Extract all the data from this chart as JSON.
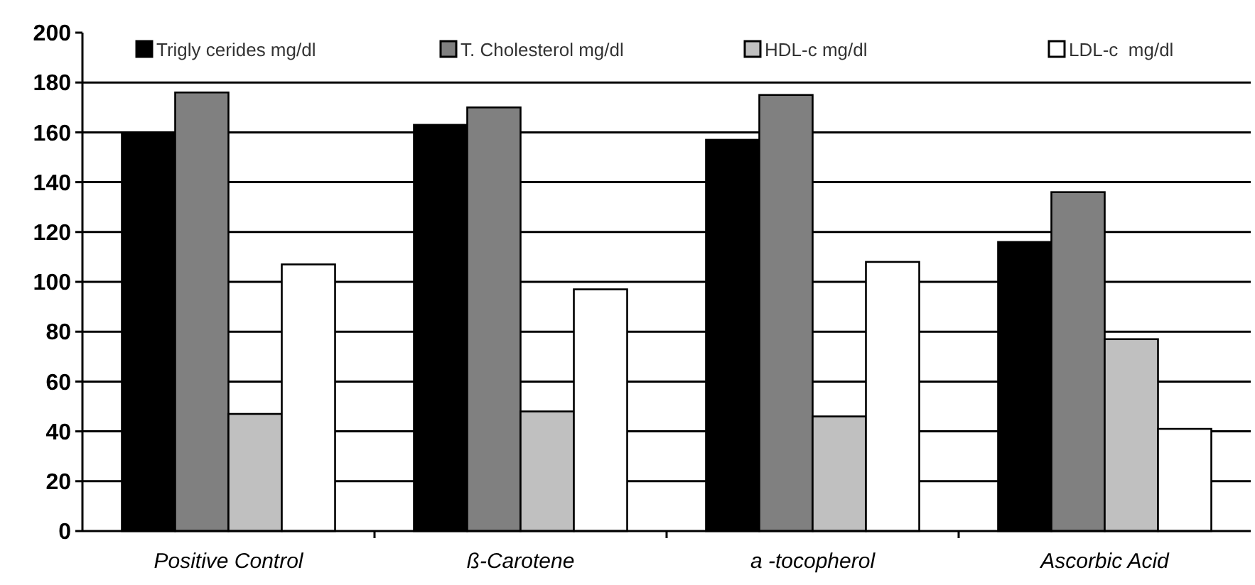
{
  "chart_data": {
    "type": "bar",
    "categories": [
      "Positive Control",
      "ß-Carotene",
      "a -tocopherol",
      "Ascorbic Acid"
    ],
    "series": [
      {
        "name": "Trigly cerides mg/dl",
        "color": "#000000",
        "values": [
          160,
          163,
          157,
          116
        ]
      },
      {
        "name": "T. Cholesterol mg/dl",
        "color": "#808080",
        "values": [
          176,
          170,
          175,
          136
        ]
      },
      {
        "name": "HDL-c mg/dl",
        "color": "#c0c0c0",
        "values": [
          47,
          48,
          46,
          77
        ]
      },
      {
        "name": "LDL-c  mg/dl",
        "color": "#ffffff",
        "values": [
          107,
          97,
          108,
          41
        ]
      }
    ],
    "ylim": [
      0,
      200
    ],
    "yticks": [
      0,
      20,
      40,
      60,
      80,
      100,
      120,
      140,
      160,
      180,
      200
    ],
    "grid": "y",
    "legend": "top"
  }
}
